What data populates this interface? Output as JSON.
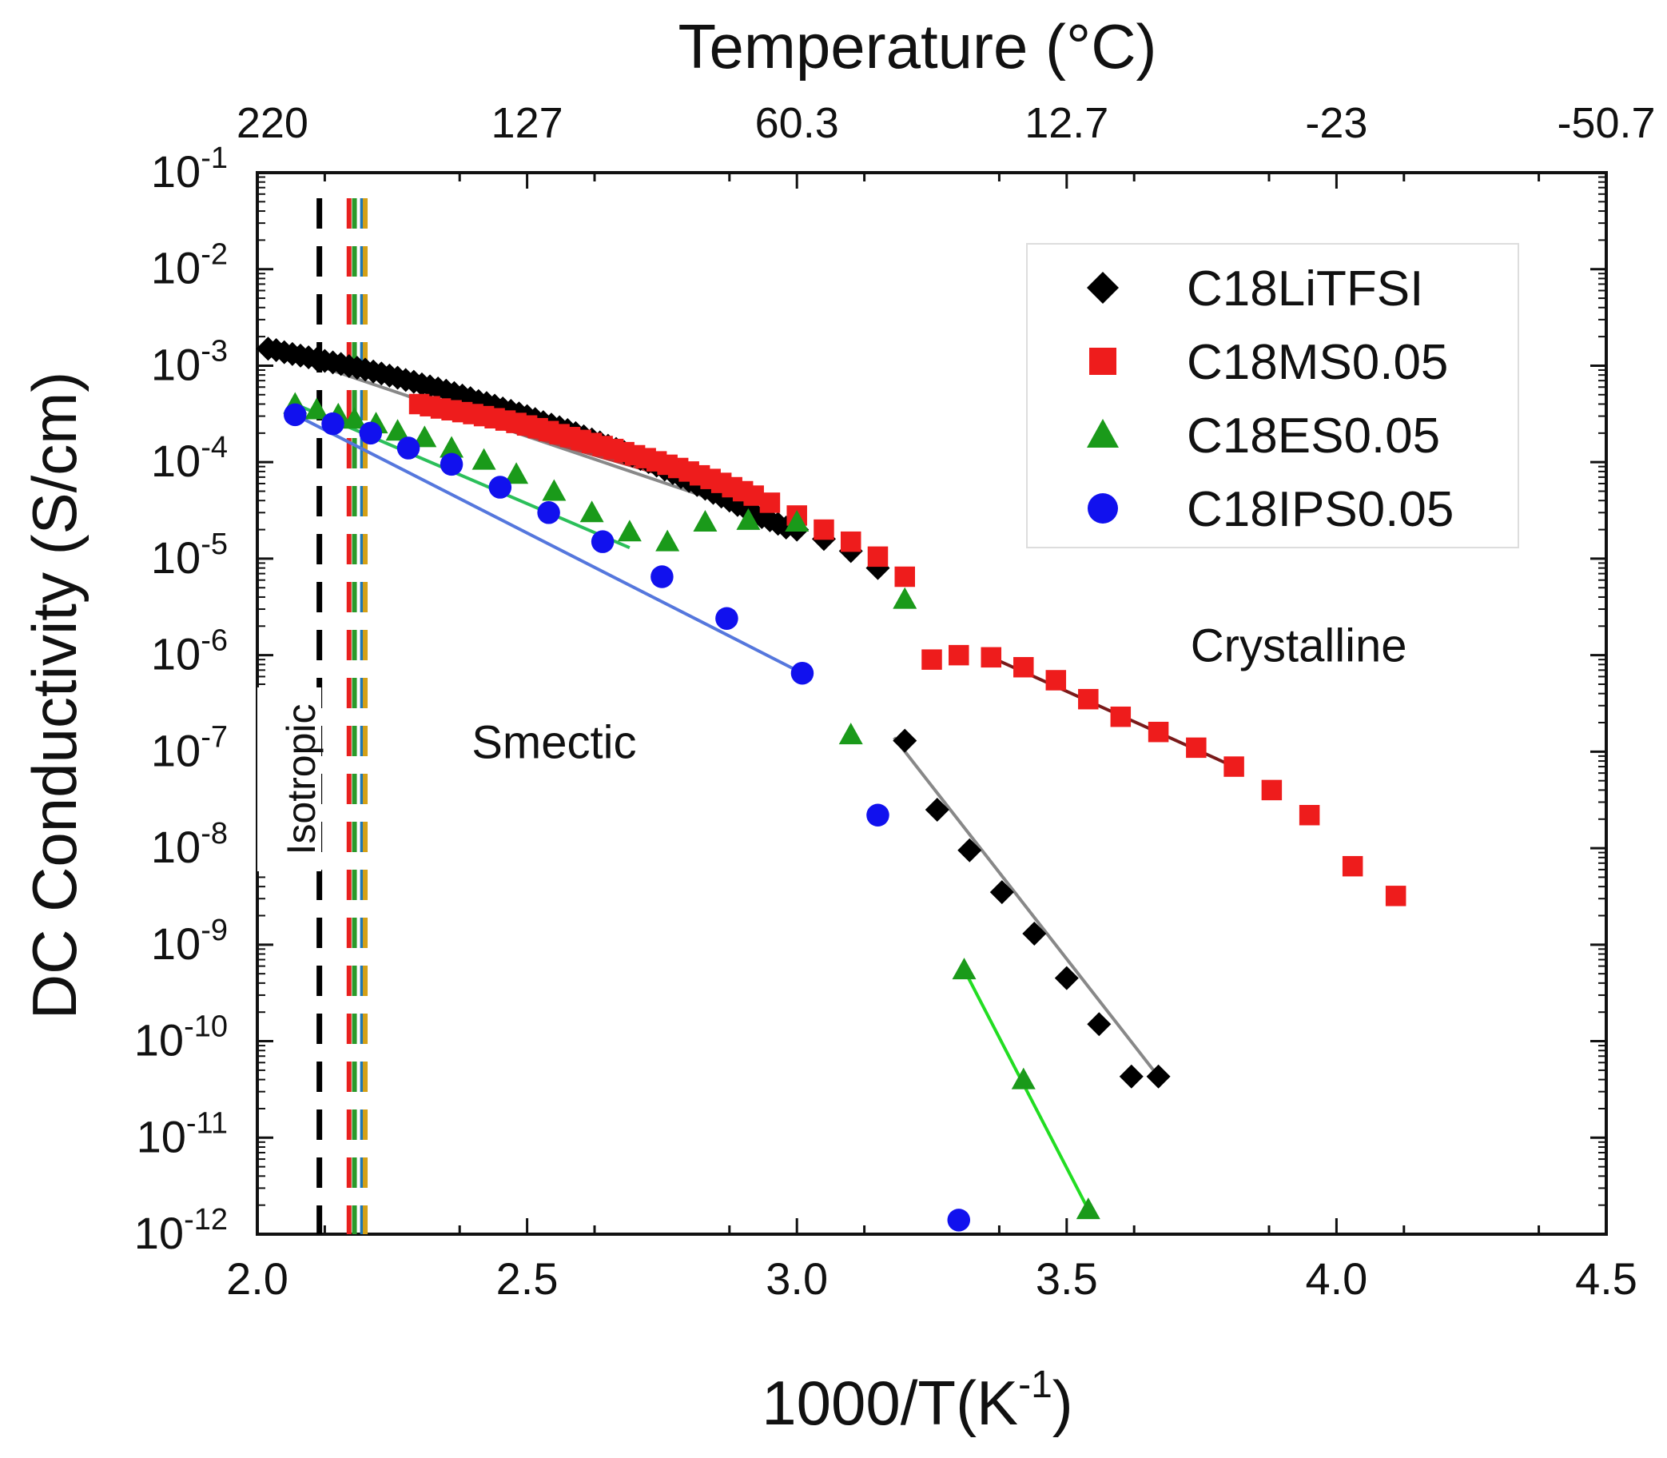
{
  "chart_data": {
    "type": "scatter",
    "xlabel_base": "1000/T(K",
    "xlabel_sup": "-1",
    "xlabel_tail": ")",
    "ylabel": "DC Conductivity (S/cm)",
    "top_axis_title": "Temperature (°C)",
    "xlim": [
      2.0,
      4.5
    ],
    "ylim_log10": [
      -12,
      -1
    ],
    "y_scale": "log",
    "x_ticks": [
      "2.0",
      "2.5",
      "3.0",
      "3.5",
      "4.0",
      "4.5"
    ],
    "x_tick_values": [
      2.0,
      2.5,
      3.0,
      3.5,
      4.0,
      4.5
    ],
    "y_ticks": [
      {
        "exp": -1,
        "base": "10",
        "sup": "-1"
      },
      {
        "exp": -2,
        "base": "10",
        "sup": "-2"
      },
      {
        "exp": -3,
        "base": "10",
        "sup": "-3"
      },
      {
        "exp": -4,
        "base": "10",
        "sup": "-4"
      },
      {
        "exp": -5,
        "base": "10",
        "sup": "-5"
      },
      {
        "exp": -6,
        "base": "10",
        "sup": "-6"
      },
      {
        "exp": -7,
        "base": "10",
        "sup": "-7"
      },
      {
        "exp": -8,
        "base": "10",
        "sup": "-8"
      },
      {
        "exp": -9,
        "base": "10",
        "sup": "-9"
      },
      {
        "exp": -10,
        "base": "10",
        "sup": "-10"
      },
      {
        "exp": -11,
        "base": "10",
        "sup": "-11"
      },
      {
        "exp": -12,
        "base": "10",
        "sup": "-12"
      }
    ],
    "top_ticks": [
      {
        "label": "220",
        "x": 2.028
      },
      {
        "label": "127",
        "x": 2.5
      },
      {
        "label": "60.3",
        "x": 3.0
      },
      {
        "label": "12.7",
        "x": 3.5
      },
      {
        "label": "-23",
        "x": 4.0
      },
      {
        "label": "-50.7",
        "x": 4.5
      }
    ],
    "legend_position": "top-right",
    "annotations": [
      {
        "text": "Isotropic",
        "x": 2.08,
        "y": -7.8
      },
      {
        "text": "Smectic",
        "x": 2.55,
        "y": -6.9
      },
      {
        "text": "Crystalline",
        "x": 3.93,
        "y": -5.9
      }
    ],
    "phase_lines": [
      {
        "x": 2.115,
        "color": "#000000"
      },
      {
        "x": 2.17,
        "color": "#e8201e"
      },
      {
        "x": 2.18,
        "color": "#2a9a2a"
      },
      {
        "x": 2.195,
        "color": "#1f77b4"
      },
      {
        "x": 2.2,
        "color": "#d4a017"
      }
    ],
    "series": [
      {
        "name": "C18LiTFSI",
        "marker": "diamond",
        "color": "#000000",
        "x": [
          2.02,
          2.035,
          2.05,
          2.065,
          2.08,
          2.095,
          2.11,
          2.125,
          2.14,
          2.155,
          2.17,
          2.185,
          2.2,
          2.215,
          2.23,
          2.245,
          2.26,
          2.275,
          2.29,
          2.305,
          2.32,
          2.335,
          2.35,
          2.365,
          2.38,
          2.395,
          2.41,
          2.425,
          2.44,
          2.455,
          2.47,
          2.485,
          2.5,
          2.515,
          2.53,
          2.545,
          2.56,
          2.575,
          2.59,
          2.605,
          2.62,
          2.635,
          2.65,
          2.665,
          2.68,
          2.695,
          2.71,
          2.725,
          2.74,
          2.755,
          2.77,
          2.785,
          2.8,
          2.815,
          2.83,
          2.845,
          2.86,
          2.875,
          2.89,
          2.905,
          2.92,
          2.935,
          2.95,
          2.965,
          2.98,
          3.0,
          3.05,
          3.1,
          3.15,
          3.2,
          3.26,
          3.32,
          3.38,
          3.44,
          3.5,
          3.56,
          3.62,
          3.67
        ],
        "y": [
          0.0015,
          0.00145,
          0.00138,
          0.00132,
          0.00127,
          0.00122,
          0.00117,
          0.00112,
          0.00108,
          0.00104,
          0.00099,
          0.00095,
          0.00091,
          0.00087,
          0.00083,
          0.00079,
          0.00075,
          0.00071,
          0.00068,
          0.00064,
          0.00061,
          0.00058,
          0.00055,
          0.00052,
          0.00049,
          0.00046,
          0.00043,
          0.00041,
          0.000385,
          0.00036,
          0.00034,
          0.00032,
          0.0003,
          0.00028,
          0.00026,
          0.000245,
          0.00023,
          0.000215,
          0.0002,
          0.000185,
          0.000172,
          0.00016,
          0.000148,
          0.000137,
          0.000127,
          0.000117,
          0.000108,
          0.0001,
          9.2e-05,
          8.4e-05,
          7.7e-05,
          7e-05,
          6.4e-05,
          5.8e-05,
          5.3e-05,
          4.8e-05,
          4.4e-05,
          4e-05,
          3.6e-05,
          3.3e-05,
          3e-05,
          2.7e-05,
          2.5e-05,
          2.3e-05,
          2.1e-05,
          2e-05,
          1.6e-05,
          1.2e-05,
          8e-06,
          1.3e-07,
          2.5e-08,
          9.5e-09,
          3.5e-09,
          1.3e-09,
          4.5e-10,
          1.5e-10,
          4.3e-11,
          4.3e-11
        ]
      },
      {
        "name": "C18MS0.05",
        "marker": "square",
        "color": "#ee1c1c",
        "x": [
          2.3,
          2.32,
          2.34,
          2.36,
          2.38,
          2.4,
          2.42,
          2.44,
          2.46,
          2.48,
          2.5,
          2.52,
          2.54,
          2.56,
          2.58,
          2.6,
          2.62,
          2.64,
          2.66,
          2.68,
          2.7,
          2.72,
          2.74,
          2.76,
          2.78,
          2.8,
          2.82,
          2.84,
          2.86,
          2.88,
          2.9,
          2.92,
          2.95,
          3.0,
          3.05,
          3.1,
          3.15,
          3.2,
          3.25,
          3.3,
          3.36,
          3.42,
          3.48,
          3.54,
          3.6,
          3.67,
          3.74,
          3.81,
          3.88,
          3.95,
          4.03,
          4.11
        ],
        "y": [
          0.0004,
          0.00038,
          0.00036,
          0.000345,
          0.00033,
          0.000315,
          0.0003,
          0.000285,
          0.00027,
          0.000255,
          0.00024,
          0.000225,
          0.00021,
          0.000195,
          0.000182,
          0.00017,
          0.000158,
          0.000147,
          0.000137,
          0.000127,
          0.000118,
          0.00011,
          0.000102,
          9.4e-05,
          8.7e-05,
          8e-05,
          7.3e-05,
          6.7e-05,
          6.1e-05,
          5.5e-05,
          5e-05,
          4.5e-05,
          3.8e-05,
          2.8e-05,
          2e-05,
          1.5e-05,
          1.05e-05,
          6.5e-06,
          9e-07,
          1e-06,
          9.5e-07,
          7.5e-07,
          5.5e-07,
          3.5e-07,
          2.3e-07,
          1.6e-07,
          1.1e-07,
          7e-08,
          4e-08,
          2.2e-08,
          6.5e-09,
          3.2e-09
        ]
      },
      {
        "name": "C18ES0.05",
        "marker": "triangle",
        "color": "#1a9a1a",
        "x": [
          2.07,
          2.11,
          2.15,
          2.18,
          2.22,
          2.26,
          2.31,
          2.36,
          2.42,
          2.48,
          2.55,
          2.62,
          2.69,
          2.76,
          2.83,
          2.91,
          3.0,
          3.1,
          3.2,
          3.31,
          3.42,
          3.54
        ],
        "y": [
          0.0004,
          0.00035,
          0.00031,
          0.00028,
          0.00025,
          0.00021,
          0.00018,
          0.00014,
          0.000105,
          7.5e-05,
          5e-05,
          3e-05,
          1.9e-05,
          1.5e-05,
          2.4e-05,
          2.5e-05,
          2.4e-05,
          1.5e-07,
          3.8e-06,
          5.5e-10,
          4e-11,
          1.8e-12
        ]
      },
      {
        "name": "C18IPS0.05",
        "marker": "circle",
        "color": "#1111ee",
        "x": [
          2.07,
          2.14,
          2.21,
          2.28,
          2.36,
          2.45,
          2.54,
          2.64,
          2.75,
          2.87,
          3.01,
          3.15,
          3.3
        ],
        "y": [
          0.00031,
          0.00025,
          0.0002,
          0.00014,
          9.5e-05,
          5.5e-05,
          3e-05,
          1.5e-05,
          6.5e-06,
          2.4e-06,
          6.5e-07,
          2.2e-08,
          1.4e-12
        ]
      }
    ],
    "fit_lines": [
      {
        "color": "#888888",
        "x": [
          2.02,
          2.95
        ],
        "y": [
          0.0015,
          2.6e-05
        ]
      },
      {
        "color": "#888888",
        "x": [
          3.18,
          3.67
        ],
        "y": [
          1.4e-07,
          4.3e-11
        ]
      },
      {
        "color": "#b33c3c",
        "x": [
          2.3,
          2.95
        ],
        "y": [
          0.0004,
          3.5e-05
        ]
      },
      {
        "color": "#7a1a1a",
        "x": [
          3.36,
          3.81
        ],
        "y": [
          9.5e-07,
          7e-08
        ]
      },
      {
        "color": "#2bbf5a",
        "x": [
          2.07,
          2.69
        ],
        "y": [
          0.0004,
          1.3e-05
        ]
      },
      {
        "color": "#22dd22",
        "x": [
          3.31,
          3.54
        ],
        "y": [
          5.5e-10,
          1.8e-12
        ]
      },
      {
        "color": "#5577dd",
        "x": [
          2.07,
          3.01
        ],
        "y": [
          0.00031,
          6.5e-07
        ]
      }
    ]
  }
}
